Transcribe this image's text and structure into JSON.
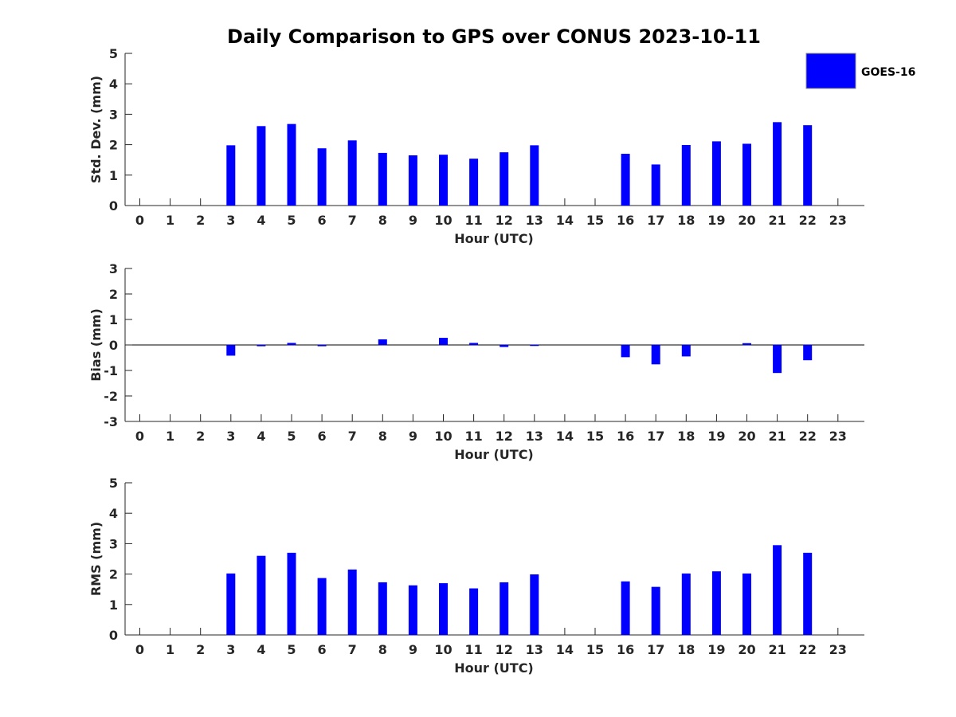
{
  "title": "Daily Comparison to GPS over CONUS 2023-10-11",
  "legend": {
    "label": "GOES-16",
    "color": "#0000ff"
  },
  "chart_data": [
    {
      "type": "bar",
      "title": "Daily Comparison to GPS over CONUS 2023-10-11",
      "xlabel": "Hour (UTC)",
      "ylabel": "Std. Dev. (mm)",
      "categories": [
        "0",
        "1",
        "2",
        "3",
        "4",
        "5",
        "6",
        "7",
        "8",
        "9",
        "10",
        "11",
        "12",
        "13",
        "14",
        "15",
        "16",
        "17",
        "18",
        "19",
        "20",
        "21",
        "22",
        "23"
      ],
      "yticks": [
        "0",
        "1",
        "2",
        "3",
        "4",
        "5"
      ],
      "ylim": [
        0,
        5
      ],
      "series": [
        {
          "name": "GOES-16",
          "color": "#0000ff",
          "values": [
            null,
            null,
            null,
            1.98,
            2.61,
            2.68,
            1.88,
            2.14,
            1.73,
            1.65,
            1.67,
            1.54,
            1.75,
            1.98,
            null,
            null,
            1.7,
            1.35,
            1.99,
            2.11,
            2.03,
            2.74,
            2.64,
            null
          ]
        }
      ]
    },
    {
      "type": "bar",
      "xlabel": "Hour (UTC)",
      "ylabel": "Bias (mm)",
      "categories": [
        "0",
        "1",
        "2",
        "3",
        "4",
        "5",
        "6",
        "7",
        "8",
        "9",
        "10",
        "11",
        "12",
        "13",
        "14",
        "15",
        "16",
        "17",
        "18",
        "19",
        "20",
        "21",
        "22",
        "23"
      ],
      "yticks": [
        "-3",
        "-2",
        "-1",
        "0",
        "1",
        "2",
        "3"
      ],
      "ylim": [
        -3,
        3
      ],
      "series": [
        {
          "name": "GOES-16",
          "color": "#0000ff",
          "values": [
            null,
            null,
            null,
            -0.42,
            -0.05,
            0.08,
            -0.05,
            0.0,
            0.22,
            0.0,
            0.28,
            0.08,
            -0.08,
            -0.04,
            null,
            null,
            -0.48,
            -0.76,
            -0.45,
            0.0,
            0.07,
            -1.1,
            -0.6,
            null
          ]
        }
      ]
    },
    {
      "type": "bar",
      "xlabel": "Hour (UTC)",
      "ylabel": "RMS (mm)",
      "categories": [
        "0",
        "1",
        "2",
        "3",
        "4",
        "5",
        "6",
        "7",
        "8",
        "9",
        "10",
        "11",
        "12",
        "13",
        "14",
        "15",
        "16",
        "17",
        "18",
        "19",
        "20",
        "21",
        "22",
        "23"
      ],
      "yticks": [
        "0",
        "1",
        "2",
        "3",
        "4",
        "5"
      ],
      "ylim": [
        0,
        5
      ],
      "series": [
        {
          "name": "GOES-16",
          "color": "#0000ff",
          "values": [
            null,
            null,
            null,
            2.02,
            2.6,
            2.7,
            1.87,
            2.15,
            1.73,
            1.63,
            1.7,
            1.53,
            1.73,
            1.99,
            null,
            null,
            1.76,
            1.58,
            2.02,
            2.09,
            2.02,
            2.95,
            2.7,
            null
          ]
        }
      ]
    }
  ]
}
